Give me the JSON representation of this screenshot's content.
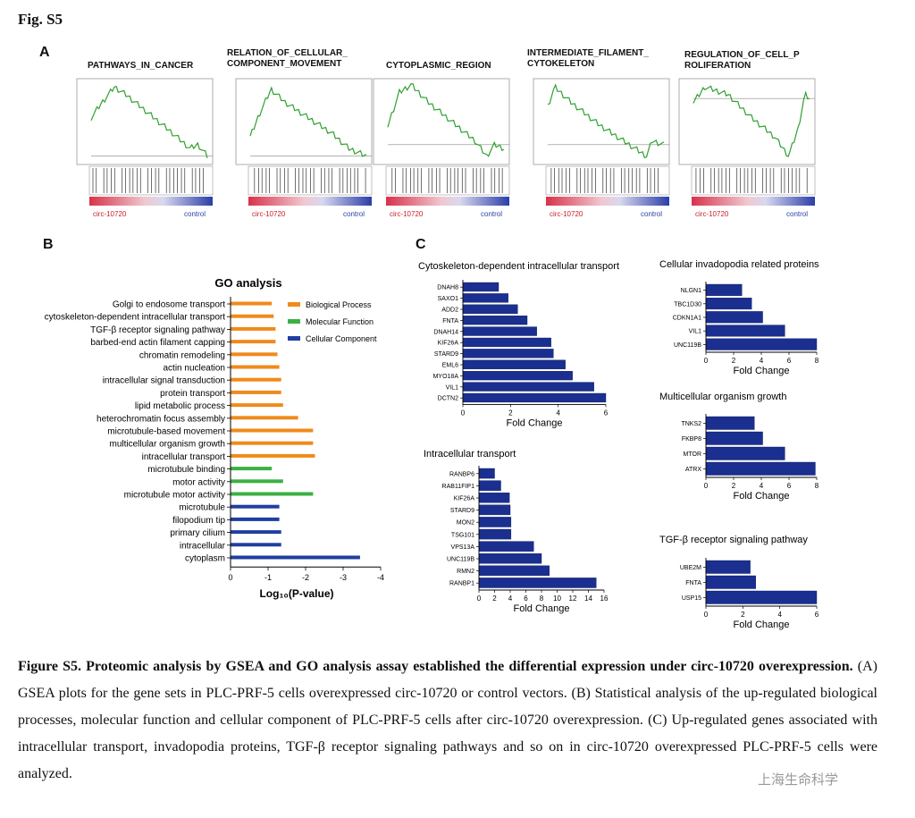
{
  "figure_label": "Fig. S5",
  "panels": {
    "a": "A",
    "b": "B",
    "c": "C"
  },
  "gsea": {
    "label_left": "circ-10720",
    "label_right": "control",
    "plots": [
      {
        "title": "PATHWAYS_IN_CANCER"
      },
      {
        "title": "RELATION_OF_CELLULAR_\nCOMPONENT_MOVEMENT"
      },
      {
        "title": "CYTOPLASMIC_REGION"
      },
      {
        "title": "INTERMEDIATE_FILAMENT_\nCYTOKELETON"
      },
      {
        "title": "REGULATION_OF_CELL_P\nROLIFERATION"
      }
    ]
  },
  "go": {
    "title": "GO analysis",
    "xlabel": "Log₁₀(P-value)",
    "legend": [
      {
        "name": "Biological Process",
        "color": "#f08a1c"
      },
      {
        "name": "Molecular Function",
        "color": "#3cb043"
      },
      {
        "name": "Cellular Component",
        "color": "#1f3fa0"
      }
    ],
    "ticks": [
      "0",
      "-1",
      "-2",
      "-3",
      "-4"
    ]
  },
  "chart_data": [
    {
      "type": "bar",
      "title": "GO analysis",
      "xlabel": "Log10(P-value)",
      "xlim": [
        0,
        -4
      ],
      "categories": [
        "Golgi to endosome transport",
        "cytoskeleton-dependent intracellular transport",
        "TGF-β receptor signaling pathway",
        "barbed-end actin filament capping",
        "chromatin remodeling",
        "actin nucleation",
        "intracellular signal transduction",
        "protein transport",
        "lipid metabolic process",
        "heterochromatin focus assembly",
        "microtubule-based movement",
        "multicellular organism growth",
        "intracellular transport",
        "microtubule binding",
        "motor activity",
        "microtubule motor activity",
        "microtubule",
        "filopodium tip",
        "primary cilium",
        "intracellular",
        "cytoplasm"
      ],
      "values": [
        -1.1,
        -1.15,
        -1.2,
        -1.2,
        -1.25,
        -1.3,
        -1.35,
        -1.35,
        -1.4,
        -1.8,
        -2.2,
        -2.2,
        -2.25,
        -1.1,
        -1.4,
        -2.2,
        -1.3,
        -1.3,
        -1.35,
        -1.35,
        -3.45
      ],
      "groups": [
        "Biological Process",
        "Biological Process",
        "Biological Process",
        "Biological Process",
        "Biological Process",
        "Biological Process",
        "Biological Process",
        "Biological Process",
        "Biological Process",
        "Biological Process",
        "Biological Process",
        "Biological Process",
        "Biological Process",
        "Molecular Function",
        "Molecular Function",
        "Molecular Function",
        "Cellular Component",
        "Cellular Component",
        "Cellular Component",
        "Cellular Component",
        "Cellular Component"
      ]
    },
    {
      "type": "bar",
      "title": "Cytoskeleton-dependent intracellular transport",
      "xlabel": "Fold Change",
      "xlim": [
        0,
        6
      ],
      "ticks": [
        0,
        2,
        4,
        6
      ],
      "categories": [
        "DNAH8",
        "SAXO1",
        "ADD2",
        "FNTA",
        "DNAH14",
        "KIF26A",
        "STARD9",
        "EML6",
        "MYO18A",
        "VIL1",
        "DCTN2"
      ],
      "values": [
        1.5,
        1.9,
        2.3,
        2.7,
        3.1,
        3.7,
        3.8,
        4.3,
        4.6,
        5.5,
        6.0
      ]
    },
    {
      "type": "bar",
      "title": "Cellular invadopodia related proteins",
      "xlabel": "Fold Change",
      "xlim": [
        0,
        8
      ],
      "ticks": [
        0,
        2,
        4,
        6,
        8
      ],
      "categories": [
        "NLGN1",
        "TBC1D30",
        "CDKN1A1",
        "VIL1",
        "UNC119B"
      ],
      "values": [
        2.6,
        3.3,
        4.1,
        5.7,
        8.0
      ]
    },
    {
      "type": "bar",
      "title": "Multicellular organism growth",
      "xlabel": "Fold Change",
      "xlim": [
        0,
        8
      ],
      "ticks": [
        0,
        2,
        4,
        6,
        8
      ],
      "categories": [
        "TNKS2",
        "FKBP8",
        "MTOR",
        "ATRX"
      ],
      "values": [
        3.5,
        4.1,
        5.7,
        7.9
      ]
    },
    {
      "type": "bar",
      "title": "Intracellular transport",
      "xlabel": "Fold Change",
      "xlim": [
        0,
        16
      ],
      "ticks": [
        0,
        2,
        4,
        6,
        8,
        10,
        12,
        14,
        16
      ],
      "categories": [
        "RANBP6",
        "RAB11FIP1",
        "KIF26A",
        "STARD9",
        "MON2",
        "TSG101",
        "VPS13A",
        "UNC119B",
        "RMN2",
        "RANBP1"
      ],
      "values": [
        2.0,
        2.8,
        3.9,
        4.0,
        4.1,
        4.1,
        7.0,
        8.0,
        9.0,
        15.0
      ]
    },
    {
      "type": "bar",
      "title": "TGF-β receptor signaling pathway",
      "xlabel": "Fold Change",
      "xlim": [
        0,
        6
      ],
      "ticks": [
        0,
        2,
        4,
        6
      ],
      "categories": [
        "UBE2M",
        "FNTA",
        "USP15"
      ],
      "values": [
        2.4,
        2.7,
        6.0
      ]
    }
  ],
  "caption": {
    "bold": "Figure S5. Proteomic analysis by GSEA and GO analysis assay established the differential expression under circ-10720 overexpression.",
    "text": " (A) GSEA plots for the gene sets in PLC-PRF-5 cells overexpressed circ-10720 or control vectors. (B) Statistical analysis of the up-regulated biological processes, molecular function and cellular component of PLC-PRF-5 cells after circ-10720 overexpression. (C) Up-regulated genes associated with intracellular transport, invadopodia proteins, TGF-β receptor signaling pathways and so on in circ-10720 overexpressed PLC-PRF-5 cells were analyzed."
  },
  "watermark": "上海生命科学"
}
